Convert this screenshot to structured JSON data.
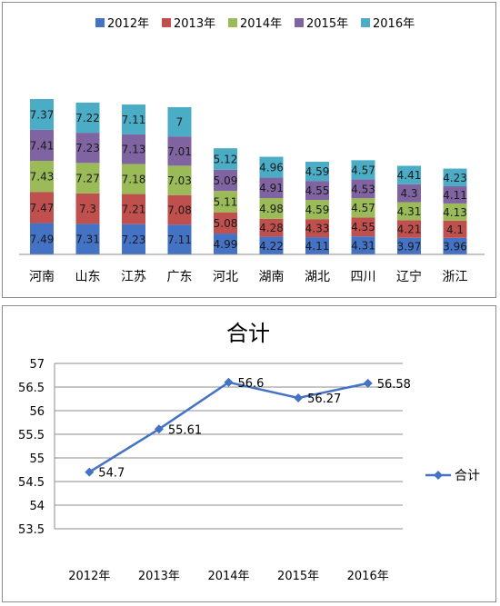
{
  "chart_data": [
    {
      "type": "bar",
      "stacked": true,
      "categories": [
        "河南",
        "山东",
        "江苏",
        "广东",
        "河北",
        "湖南",
        "湖北",
        "四川",
        "辽宁",
        "浙江"
      ],
      "series": [
        {
          "name": "2012年",
          "color": "#4472c4",
          "values": [
            7.49,
            7.31,
            7.23,
            7.11,
            4.99,
            4.22,
            4.11,
            4.31,
            3.97,
            3.96
          ]
        },
        {
          "name": "2013年",
          "color": "#c0504d",
          "values": [
            7.47,
            7.3,
            7.21,
            7.08,
            5.08,
            4.28,
            4.33,
            4.55,
            4.21,
            4.1
          ]
        },
        {
          "name": "2014年",
          "color": "#9bbb59",
          "values": [
            7.43,
            7.27,
            7.18,
            7.03,
            5.11,
            4.98,
            4.59,
            4.57,
            4.31,
            4.13
          ]
        },
        {
          "name": "2015年",
          "color": "#8064a2",
          "values": [
            7.41,
            7.23,
            7.13,
            7.01,
            5.09,
            4.91,
            4.55,
            4.53,
            4.3,
            4.11
          ]
        },
        {
          "name": "2016年",
          "color": "#4bacc6",
          "values": [
            7.37,
            7.22,
            7.11,
            7.0,
            5.12,
            4.96,
            4.59,
            4.57,
            4.41,
            4.23
          ]
        }
      ],
      "value_labels": [
        [
          "7.49",
          "7.31",
          "7.23",
          "7.11",
          "4.99",
          "4.22",
          "4.11",
          "4.31",
          "3.97",
          "3.96"
        ],
        [
          "7.47",
          "7.3",
          "7.21",
          "7.08",
          "5.08",
          "4.28",
          "4.33",
          "4.55",
          "4.21",
          "4.1"
        ],
        [
          "7.43",
          "7.27",
          "7.18",
          "7.03",
          "5.11",
          "4.98",
          "4.59",
          "4.57",
          "4.31",
          "4.13"
        ],
        [
          "7.41",
          "7.23",
          "7.13",
          "7.01",
          "5.09",
          "4.91",
          "4.55",
          "4.53",
          "4.3",
          "4.11"
        ],
        [
          "7.37",
          "7.22",
          "7.11",
          "7",
          "5.12",
          "4.96",
          "4.59",
          "4.57",
          "4.41",
          "4.23"
        ]
      ],
      "legend_position": "top",
      "grid": false,
      "ylim": [
        0,
        40
      ]
    },
    {
      "type": "line",
      "title": "合计",
      "categories": [
        "2012年",
        "2013年",
        "2014年",
        "2015年",
        "2016年"
      ],
      "series": [
        {
          "name": "合计",
          "color": "#4472c4",
          "values": [
            54.7,
            55.61,
            56.6,
            56.27,
            56.58
          ]
        }
      ],
      "value_labels": [
        "54.7",
        "55.61",
        "56.6",
        "56.27",
        "56.58"
      ],
      "ylim": [
        53.5,
        57
      ],
      "yticks": [
        53.5,
        54,
        54.5,
        55,
        55.5,
        56,
        56.5,
        57
      ],
      "ytick_labels": [
        "53.5",
        "54",
        "54.5",
        "55",
        "55.5",
        "56",
        "56.5",
        "57"
      ],
      "grid": true,
      "legend_position": "right"
    }
  ]
}
